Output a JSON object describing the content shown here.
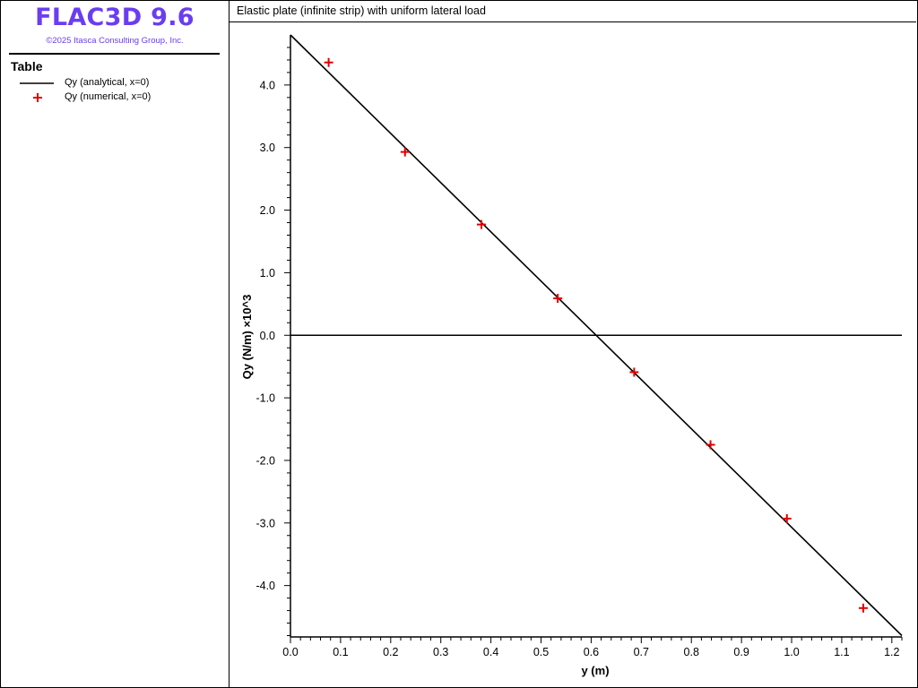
{
  "app": {
    "title": "FLAC3D 9.6",
    "copyright": "©2025 Itasca Consulting Group, Inc."
  },
  "legend": {
    "title": "Table",
    "items": [
      {
        "label": "Qy (analytical, x=0)",
        "symbol": "line",
        "color": "#000000"
      },
      {
        "label": "Qy (numerical, x=0)",
        "symbol": "plus",
        "color": "#e00000"
      }
    ]
  },
  "chart_data": {
    "type": "scatter",
    "title": "Elastic plate (infinite strip) with uniform lateral load",
    "xlabel": "y (m)",
    "ylabel": "Qy (N/m) ×10^3",
    "xlim": [
      0.0,
      1.22
    ],
    "ylim": [
      -4.85,
      4.8
    ],
    "xticks": [
      "0.0",
      "0.1",
      "0.2",
      "0.3",
      "0.4",
      "0.5",
      "0.6",
      "0.7",
      "0.8",
      "0.9",
      "1.0",
      "1.1",
      "1.2"
    ],
    "yticks": [
      "4.0",
      "3.0",
      "2.0",
      "1.0",
      "0.0",
      "-1.0",
      "-2.0",
      "-3.0",
      "-4.0"
    ],
    "zero_line": true,
    "grid": false,
    "series": [
      {
        "name": "Qy (analytical, x=0)",
        "type": "line",
        "color": "#000000",
        "x": [
          0.0,
          1.22
        ],
        "y": [
          4.8,
          -4.8
        ]
      },
      {
        "name": "Qy (numerical, x=0)",
        "type": "scatter",
        "marker": "plus",
        "color": "#e00000",
        "x": [
          0.0762,
          0.2286,
          0.381,
          0.5334,
          0.6858,
          0.8382,
          0.9906,
          1.143
        ],
        "y": [
          4.36,
          2.93,
          1.77,
          0.59,
          -0.59,
          -1.75,
          -2.93,
          -4.36
        ]
      }
    ]
  }
}
